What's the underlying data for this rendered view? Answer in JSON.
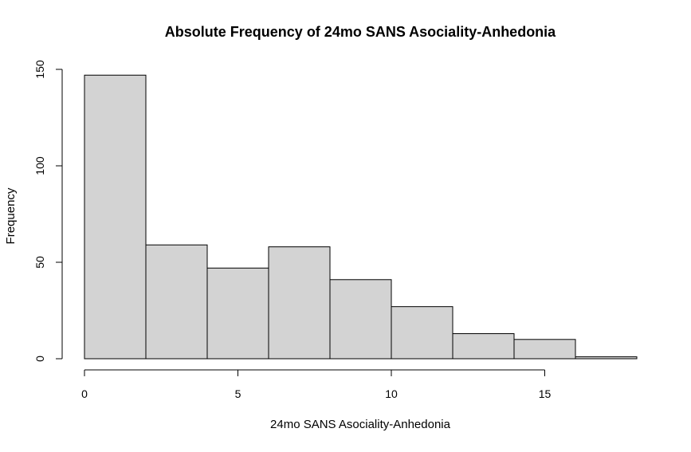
{
  "chart_data": {
    "type": "bar",
    "title": "Absolute Frequency of 24mo SANS Asociality-Anhedonia",
    "xlabel": "24mo SANS Asociality-Anhedonia",
    "ylabel": "Frequency",
    "bins": [
      {
        "x0": 0,
        "x1": 2,
        "count": 147
      },
      {
        "x0": 2,
        "x1": 4,
        "count": 59
      },
      {
        "x0": 4,
        "x1": 6,
        "count": 47
      },
      {
        "x0": 6,
        "x1": 8,
        "count": 58
      },
      {
        "x0": 8,
        "x1": 10,
        "count": 41
      },
      {
        "x0": 10,
        "x1": 12,
        "count": 27
      },
      {
        "x0": 12,
        "x1": 14,
        "count": 13
      },
      {
        "x0": 14,
        "x1": 16,
        "count": 10
      },
      {
        "x0": 16,
        "x1": 18,
        "count": 1
      }
    ],
    "xlim": [
      0,
      18
    ],
    "ylim": [
      0,
      150
    ],
    "x_ticks": [
      0,
      5,
      10,
      15
    ],
    "y_ticks": [
      0,
      50,
      100,
      150
    ],
    "grid": false,
    "legend": "none",
    "bar_fill": "#d3d3d3",
    "bar_stroke": "#000000"
  }
}
